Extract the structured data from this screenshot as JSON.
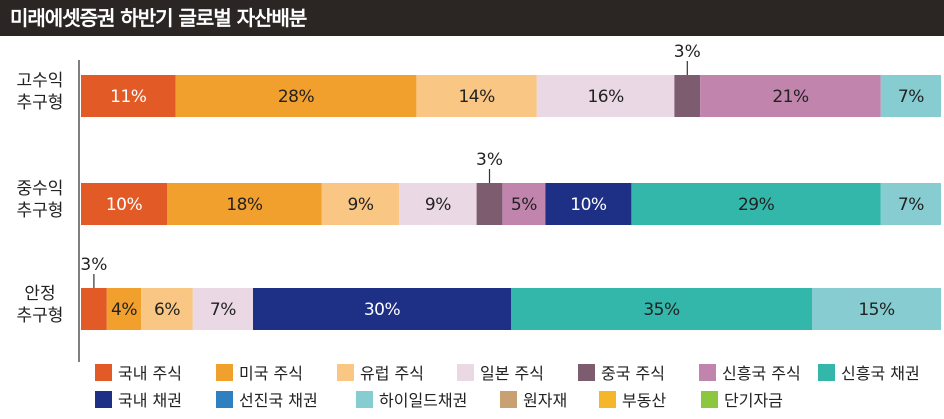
{
  "chart_data": {
    "type": "bar",
    "orientation": "horizontal",
    "stacked": true,
    "title": "미래에셋증권 하반기 글로벌 자산배분",
    "xlim": [
      0,
      100
    ],
    "unit": "%",
    "categories": [
      [
        "고수익",
        "추구형"
      ],
      [
        "중수익",
        "추구형"
      ],
      [
        "안정",
        "추구형"
      ]
    ],
    "series": [
      {
        "name": "국내 주식",
        "color": "#e25a26",
        "text_color": "#ffffff",
        "values": [
          11,
          10,
          3
        ]
      },
      {
        "name": "미국 주식",
        "color": "#f2a02d",
        "text_color": "#222222",
        "values": [
          28,
          18,
          4
        ]
      },
      {
        "name": "유럽 주식",
        "color": "#f9c783",
        "text_color": "#222222",
        "values": [
          14,
          9,
          6
        ]
      },
      {
        "name": "일본 주식",
        "color": "#ead8e4",
        "text_color": "#222222",
        "values": [
          16,
          9,
          7
        ]
      },
      {
        "name": "중국 주식",
        "color": "#7c5c6e",
        "text_color": "#ffffff",
        "values": [
          3,
          3,
          0
        ]
      },
      {
        "name": "신흥국 주식",
        "color": "#c184ad",
        "text_color": "#222222",
        "values": [
          21,
          5,
          0
        ]
      },
      {
        "name": "국내 채권",
        "color": "#1e2f86",
        "text_color": "#ffffff",
        "values": [
          0,
          10,
          30
        ]
      },
      {
        "name": "신흥국 채권",
        "color": "#33b7aa",
        "text_color": "#222222",
        "values": [
          0,
          29,
          35
        ]
      },
      {
        "name": "하이일드채권",
        "color": "#86ccd0",
        "text_color": "#222222",
        "values": [
          7,
          7,
          15
        ]
      },
      {
        "name": "선진국 채권",
        "color": "#2f7fc1",
        "text_color": "#ffffff",
        "values": [
          0,
          0,
          0
        ]
      },
      {
        "name": "원자재",
        "color": "#c9a072",
        "text_color": "#222222",
        "values": [
          0,
          0,
          0
        ]
      },
      {
        "name": "부동산",
        "color": "#f4b62a",
        "text_color": "#222222",
        "values": [
          0,
          0,
          0
        ]
      },
      {
        "name": "단기자금",
        "color": "#8dc63f",
        "text_color": "#222222",
        "values": [
          0,
          0,
          0
        ]
      }
    ],
    "segment_labels": [
      [
        "11%",
        "28%",
        "14%",
        "16%",
        "3%",
        "21%",
        "",
        "",
        "7%"
      ],
      [
        "10%",
        "18%",
        "9%",
        "9%",
        "3%",
        "5%",
        "10%",
        "29%",
        "7%"
      ],
      [
        "3%",
        "4%",
        "6%",
        "7%",
        "",
        "",
        "30%",
        "35%",
        "15%"
      ]
    ],
    "legend": {
      "position": "bottom",
      "rows": [
        [
          "국내 주식",
          "미국 주식",
          "유럽 주식",
          "일본 주식",
          "중국 주식",
          "신흥국 주식",
          "신흥국 채권"
        ],
        [
          "국내 채권",
          "선진국 채권",
          "하이일드채권",
          "원자재",
          "부동산",
          "단기자금"
        ]
      ]
    }
  }
}
